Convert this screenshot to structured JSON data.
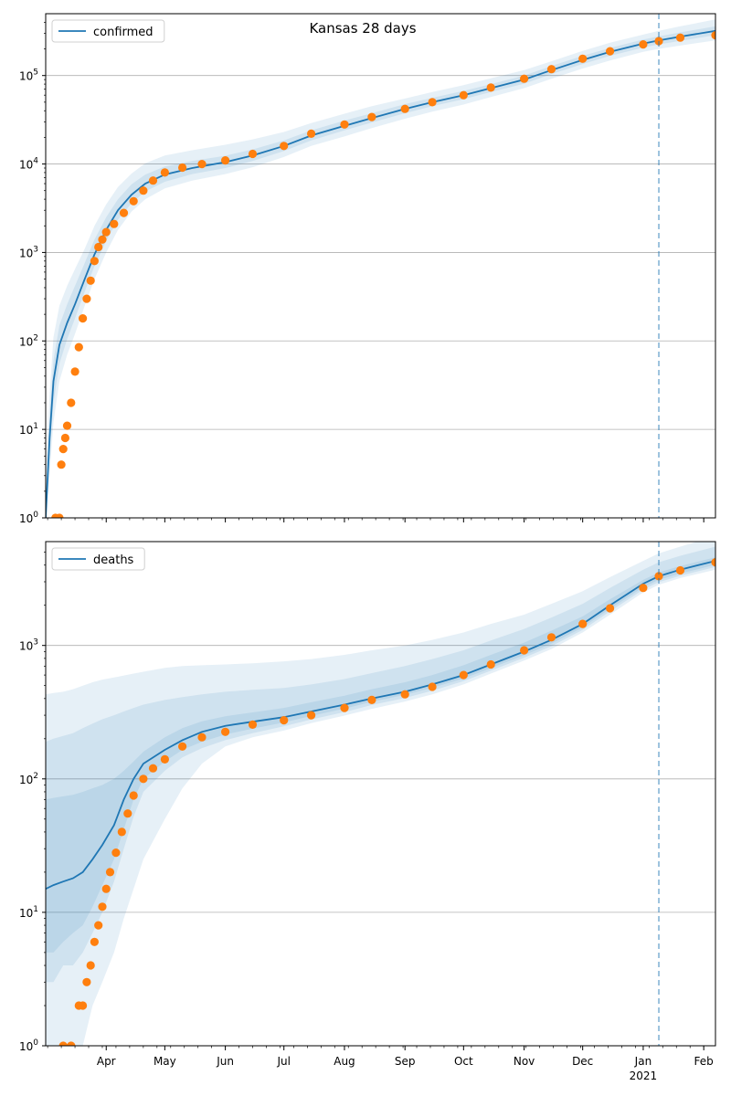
{
  "title": "Kansas 28 days",
  "colors": {
    "model": "#1f77b4",
    "observed": "#ff7f0e",
    "band": "#1f77b4",
    "grid": "#b0b0b0",
    "forecast_line": "#1f77b4"
  },
  "x_axis": {
    "domain": [
      "2020-03-01",
      "2021-02-07"
    ],
    "tick_labels": [
      "Apr",
      "May",
      "Jun",
      "Jul",
      "Aug",
      "Sep",
      "Oct",
      "Nov",
      "Dec",
      "Jan",
      "Feb"
    ],
    "tick_dates": [
      "2020-04-01",
      "2020-05-01",
      "2020-06-01",
      "2020-07-01",
      "2020-08-01",
      "2020-09-01",
      "2020-10-01",
      "2020-11-01",
      "2020-12-01",
      "2021-01-01",
      "2021-02-01"
    ],
    "year_label": "2021",
    "forecast_start": "2021-01-09"
  },
  "chart_data": [
    {
      "type": "line",
      "title": "Kansas 28 days",
      "scale": "log",
      "ylim": [
        1,
        500000
      ],
      "y_ticks": [
        1,
        10,
        100,
        1000,
        10000,
        100000
      ],
      "y_tick_labels": [
        "10^0",
        "10^1",
        "10^2",
        "10^3",
        "10^4",
        "10^5"
      ],
      "grid": true,
      "legend": "top-left",
      "legend_label": "confirmed",
      "model": {
        "x": [
          "2020-03-01",
          "2020-03-03",
          "2020-03-05",
          "2020-03-08",
          "2020-03-12",
          "2020-03-16",
          "2020-03-21",
          "2020-03-26",
          "2020-04-01",
          "2020-04-07",
          "2020-04-14",
          "2020-04-21",
          "2020-05-01",
          "2020-05-15",
          "2020-06-01",
          "2020-06-15",
          "2020-07-01",
          "2020-07-15",
          "2020-08-01",
          "2020-08-15",
          "2020-09-01",
          "2020-09-15",
          "2020-10-01",
          "2020-10-15",
          "2020-11-01",
          "2020-11-15",
          "2020-12-01",
          "2020-12-15",
          "2021-01-01",
          "2021-01-09",
          "2021-01-20",
          "2021-02-07"
        ],
        "y": [
          1,
          8,
          35,
          90,
          160,
          260,
          500,
          950,
          1800,
          3000,
          4500,
          6000,
          7600,
          9000,
          10500,
          12500,
          16000,
          21000,
          27000,
          33000,
          42000,
          50000,
          60000,
          72000,
          90000,
          115000,
          150000,
          185000,
          230000,
          250000,
          275000,
          320000
        ]
      },
      "observed": {
        "x": [
          "2020-03-06",
          "2020-03-08",
          "2020-03-09",
          "2020-03-10",
          "2020-03-11",
          "2020-03-12",
          "2020-03-14",
          "2020-03-16",
          "2020-03-18",
          "2020-03-20",
          "2020-03-22",
          "2020-03-24",
          "2020-03-26",
          "2020-03-28",
          "2020-03-30",
          "2020-04-01",
          "2020-04-05",
          "2020-04-10",
          "2020-04-15",
          "2020-04-20",
          "2020-04-25",
          "2020-05-01",
          "2020-05-10",
          "2020-05-20",
          "2020-06-01",
          "2020-06-15",
          "2020-07-01",
          "2020-07-15",
          "2020-08-01",
          "2020-08-15",
          "2020-09-01",
          "2020-09-15",
          "2020-10-01",
          "2020-10-15",
          "2020-11-01",
          "2020-11-15",
          "2020-12-01",
          "2020-12-15",
          "2021-01-01",
          "2021-01-09",
          "2021-01-20",
          "2021-02-07"
        ],
        "y": [
          1,
          1,
          4,
          6,
          8,
          11,
          20,
          45,
          85,
          180,
          300,
          480,
          800,
          1150,
          1400,
          1700,
          2100,
          2800,
          3800,
          5000,
          6500,
          8000,
          9100,
          10000,
          11000,
          13000,
          16000,
          22000,
          28000,
          34000,
          42000,
          50000,
          60000,
          73000,
          92000,
          118000,
          155000,
          188000,
          225000,
          245000,
          268000,
          285000
        ]
      },
      "bands": [
        {
          "lower": [
            1,
            3,
            12,
            35,
            70,
            120,
            250,
            500,
            1000,
            1800,
            2900,
            4000,
            5300,
            6500,
            7700,
            9200,
            12000,
            16000,
            20500,
            25500,
            32500,
            39000,
            47000,
            57000,
            72000,
            92000,
            120000,
            148000,
            185000,
            200000,
            218000,
            250000
          ],
          "upper": [
            3,
            25,
            110,
            250,
            420,
            650,
            1100,
            2000,
            3500,
            5500,
            7800,
            10200,
            12500,
            14300,
            16500,
            19000,
            23000,
            29000,
            37000,
            45000,
            55000,
            65000,
            78000,
            93000,
            115000,
            145000,
            190000,
            235000,
            290000,
            320000,
            360000,
            430000
          ]
        },
        {
          "lower": [
            1,
            5,
            20,
            55,
            105,
            180,
            360,
            700,
            1350,
            2350,
            3600,
            4900,
            6300,
            7700,
            9000,
            10800,
            14000,
            18500,
            24000,
            29500,
            37500,
            45000,
            54000,
            65000,
            81000,
            104000,
            135000,
            167000,
            207000,
            225000,
            247000,
            286000
          ],
          "upper": [
            2,
            14,
            60,
            150,
            260,
            420,
            760,
            1400,
            2500,
            4000,
            5900,
            7600,
            9400,
            10800,
            12400,
            14600,
            18500,
            24000,
            31000,
            37500,
            47500,
            56000,
            67000,
            80000,
            100000,
            128000,
            167000,
            205000,
            255000,
            278000,
            307000,
            360000
          ]
        }
      ]
    },
    {
      "type": "line",
      "scale": "log",
      "ylim": [
        1,
        6000
      ],
      "y_ticks": [
        1,
        10,
        100,
        1000
      ],
      "y_tick_labels": [
        "10^0",
        "10^1",
        "10^2",
        "10^3"
      ],
      "grid": true,
      "legend": "top-left",
      "legend_label": "deaths",
      "model": {
        "x": [
          "2020-03-01",
          "2020-03-05",
          "2020-03-10",
          "2020-03-15",
          "2020-03-20",
          "2020-03-25",
          "2020-03-30",
          "2020-04-05",
          "2020-04-10",
          "2020-04-15",
          "2020-04-20",
          "2020-05-01",
          "2020-05-10",
          "2020-05-20",
          "2020-06-01",
          "2020-06-15",
          "2020-07-01",
          "2020-07-15",
          "2020-08-01",
          "2020-08-15",
          "2020-09-01",
          "2020-09-15",
          "2020-10-01",
          "2020-10-15",
          "2020-11-01",
          "2020-11-15",
          "2020-12-01",
          "2020-12-15",
          "2021-01-01",
          "2021-01-09",
          "2021-01-20",
          "2021-02-07"
        ],
        "y": [
          15,
          16,
          17,
          18,
          20,
          25,
          32,
          45,
          70,
          100,
          130,
          165,
          195,
          225,
          250,
          268,
          290,
          320,
          360,
          400,
          450,
          510,
          600,
          720,
          900,
          1100,
          1450,
          2000,
          2900,
          3300,
          3700,
          4300
        ]
      },
      "observed": {
        "x": [
          "2020-03-10",
          "2020-03-14",
          "2020-03-18",
          "2020-03-20",
          "2020-03-22",
          "2020-03-24",
          "2020-03-26",
          "2020-03-28",
          "2020-03-30",
          "2020-04-01",
          "2020-04-03",
          "2020-04-06",
          "2020-04-09",
          "2020-04-12",
          "2020-04-15",
          "2020-04-20",
          "2020-04-25",
          "2020-05-01",
          "2020-05-10",
          "2020-05-20",
          "2020-06-01",
          "2020-06-15",
          "2020-07-01",
          "2020-07-15",
          "2020-08-01",
          "2020-08-15",
          "2020-09-01",
          "2020-09-15",
          "2020-10-01",
          "2020-10-15",
          "2020-11-01",
          "2020-11-15",
          "2020-12-01",
          "2020-12-15",
          "2021-01-01",
          "2021-01-09",
          "2021-01-20",
          "2021-02-07"
        ],
        "y": [
          1,
          1,
          2,
          2,
          3,
          4,
          6,
          8,
          11,
          15,
          20,
          28,
          40,
          55,
          75,
          100,
          120,
          140,
          175,
          205,
          225,
          255,
          275,
          300,
          340,
          390,
          430,
          490,
          600,
          720,
          920,
          1150,
          1450,
          1900,
          2700,
          3300,
          3650,
          4200
        ]
      },
      "bands": [
        {
          "lower": [
            1,
            1,
            1,
            1,
            1,
            2,
            3,
            5,
            9,
            15,
            25,
            50,
            85,
            130,
            175,
            205,
            230,
            262,
            298,
            335,
            380,
            430,
            510,
            615,
            770,
            940,
            1250,
            1700,
            2500,
            2850,
            3200,
            3700
          ],
          "upper": [
            430,
            440,
            450,
            470,
            500,
            530,
            555,
            575,
            595,
            615,
            635,
            680,
            700,
            710,
            720,
            735,
            760,
            790,
            850,
            920,
            1000,
            1100,
            1250,
            1450,
            1700,
            2050,
            2550,
            3250,
            4300,
            4900,
            5500,
            6600
          ]
        },
        {
          "lower": [
            3,
            3,
            4,
            4,
            5,
            7,
            10,
            17,
            30,
            52,
            80,
            115,
            145,
            170,
            195,
            220,
            248,
            279,
            317,
            358,
            404,
            458,
            540,
            648,
            810,
            988,
            1310,
            1800,
            2620,
            2980,
            3330,
            3870
          ],
          "upper": [
            190,
            200,
            210,
            220,
            240,
            260,
            280,
            300,
            320,
            340,
            360,
            390,
            410,
            430,
            450,
            465,
            480,
            510,
            560,
            620,
            700,
            790,
            920,
            1090,
            1330,
            1620,
            2050,
            2700,
            3700,
            4200,
            4700,
            5500
          ]
        },
        {
          "lower": [
            5,
            5,
            6,
            7,
            8,
            11,
            16,
            25,
            42,
            70,
            100,
            135,
            165,
            190,
            215,
            238,
            265,
            296,
            336,
            378,
            426,
            482,
            565,
            676,
            845,
            1030,
            1365,
            1880,
            2730,
            3100,
            3460,
            4020
          ],
          "upper": [
            70,
            72,
            74,
            76,
            80,
            85,
            90,
            100,
            115,
            135,
            160,
            205,
            240,
            270,
            295,
            315,
            340,
            375,
            420,
            470,
            530,
            600,
            710,
            850,
            1050,
            1290,
            1650,
            2220,
            3100,
            3520,
            3940,
            4580
          ]
        }
      ]
    }
  ]
}
